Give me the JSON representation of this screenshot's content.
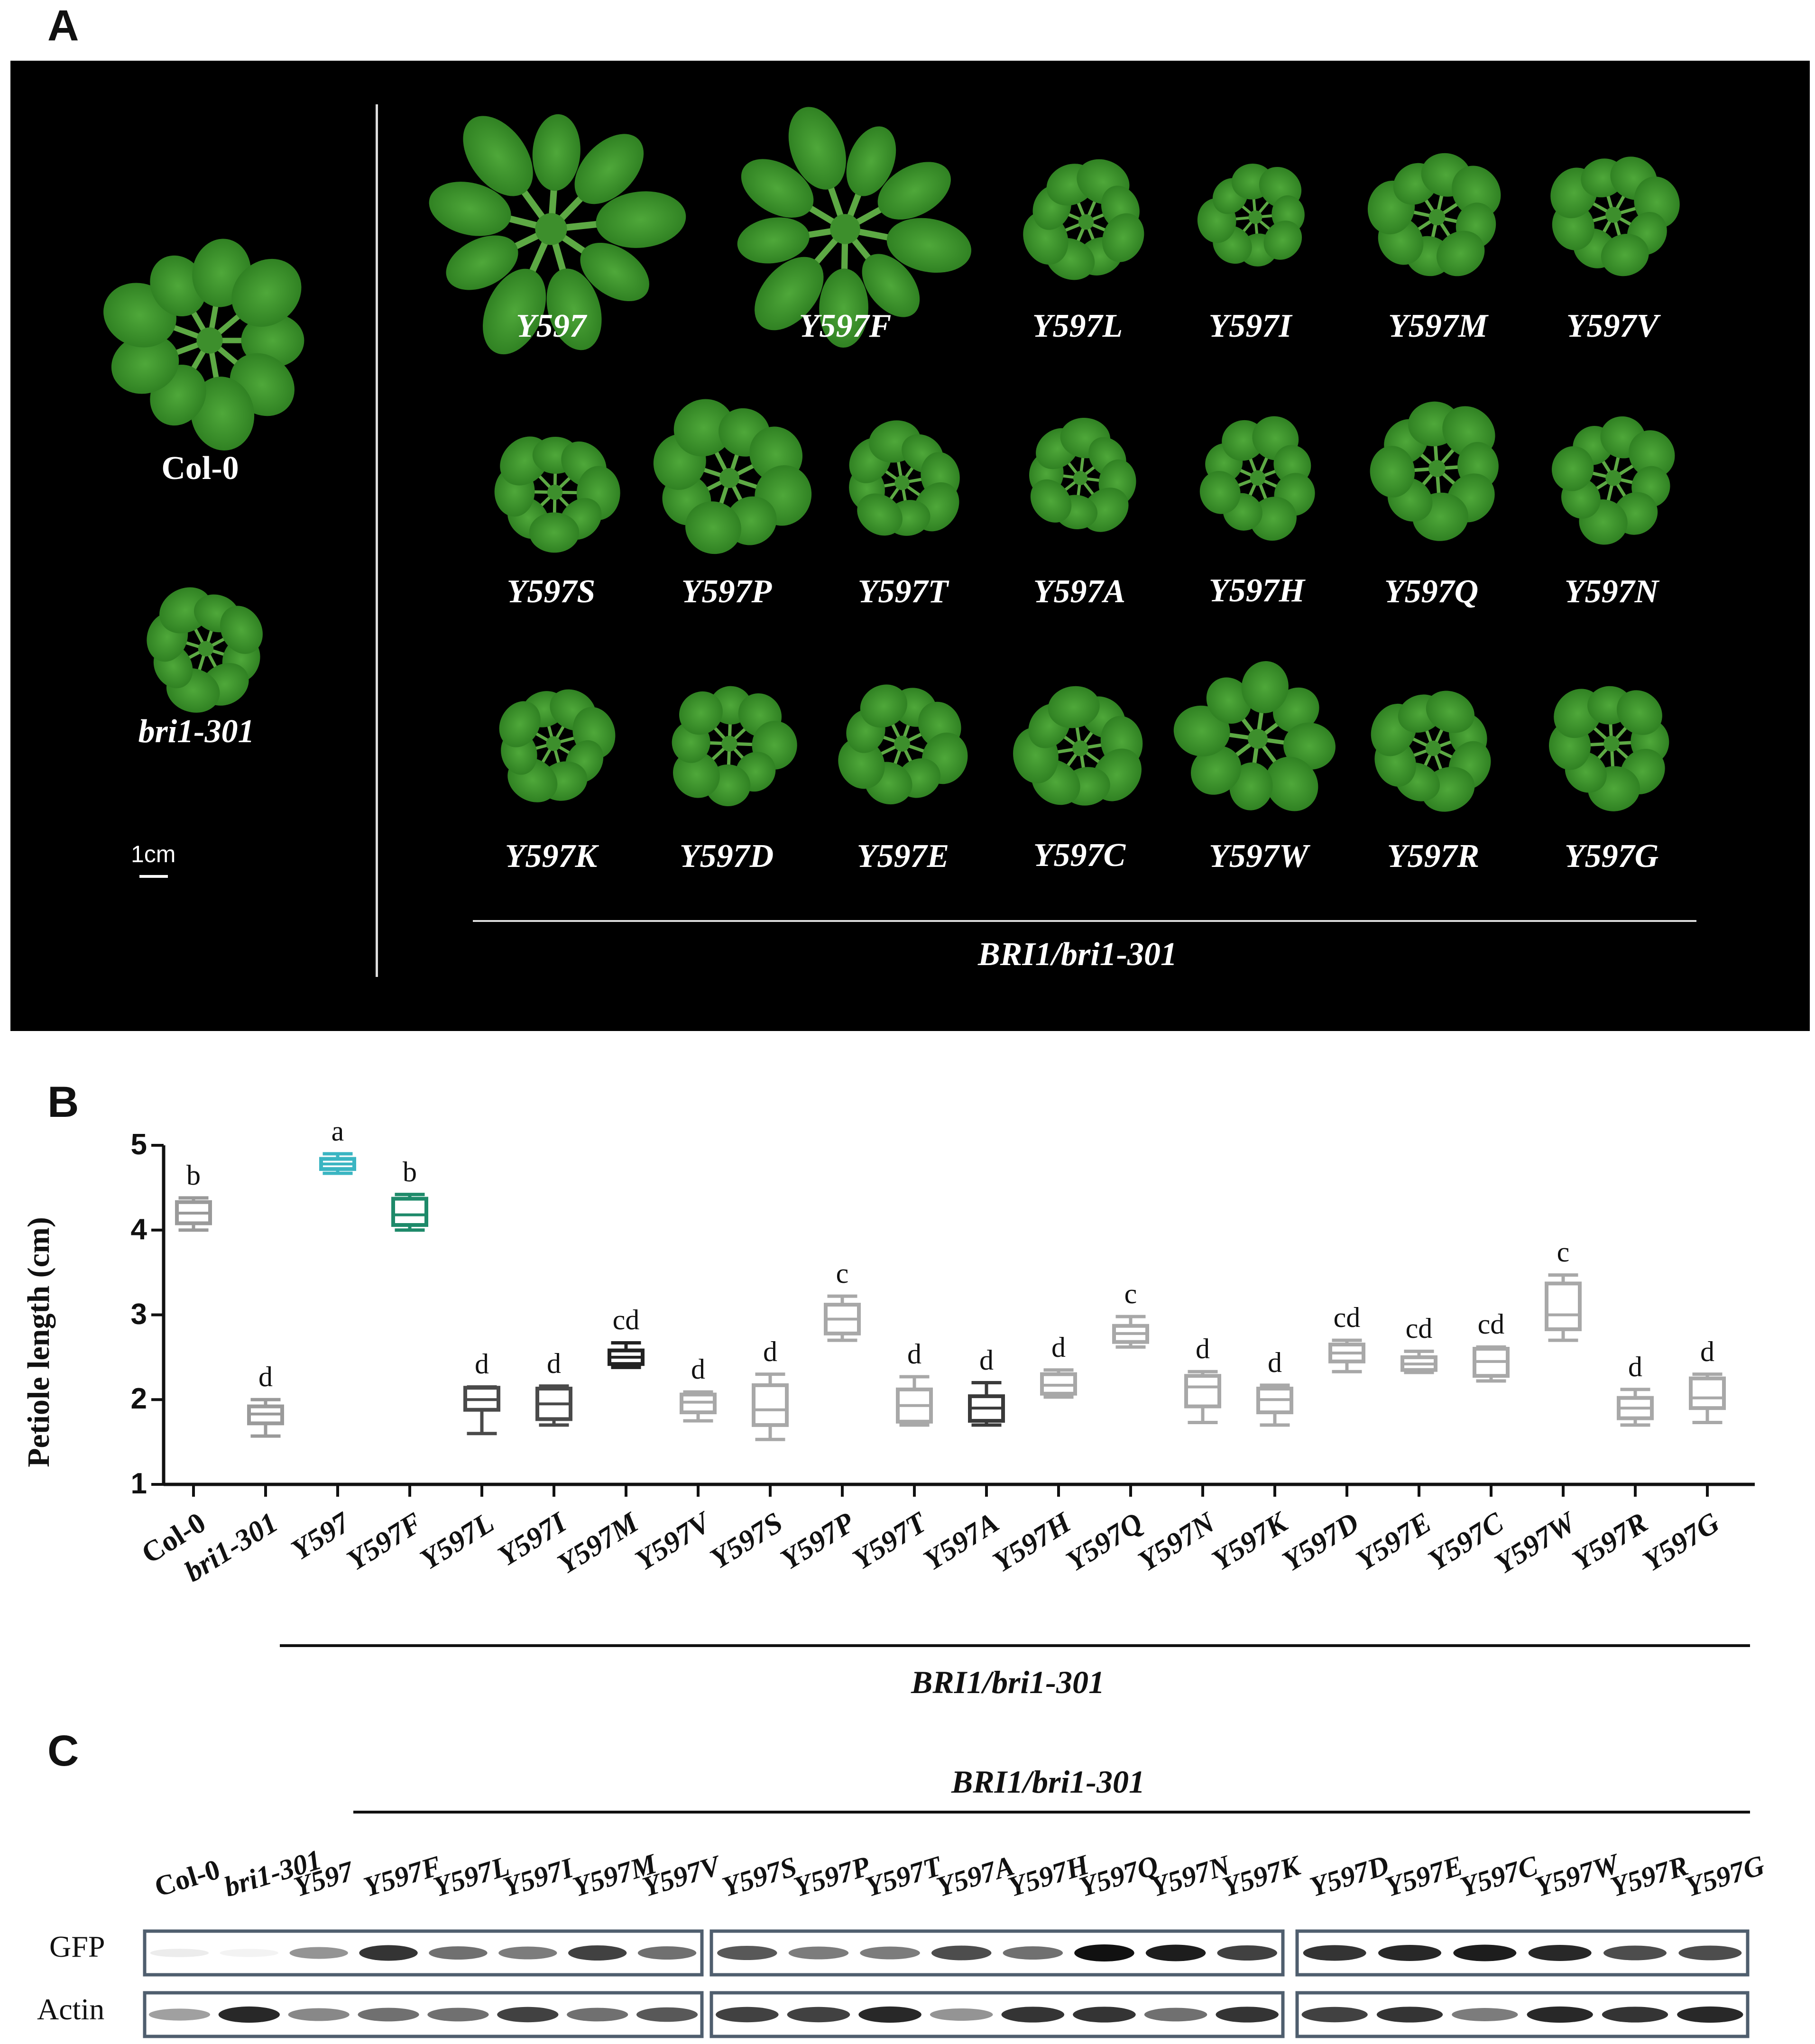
{
  "panels": {
    "a": "A",
    "b": "B",
    "c": "C"
  },
  "panelA": {
    "controls": [
      "Col-0",
      "bri1-301"
    ],
    "rows": [
      [
        "Y597",
        "Y597F",
        "Y597L",
        "Y597I",
        "Y597M",
        "Y597V"
      ],
      [
        "Y597S",
        "Y597P",
        "Y597T",
        "Y597A",
        "Y597H",
        "Y597Q",
        "Y597N"
      ],
      [
        "Y597K",
        "Y597D",
        "Y597E",
        "Y597C",
        "Y597W",
        "Y597R",
        "Y597G"
      ]
    ],
    "scale_bar": "1cm",
    "group_label": "BRI1/bri1-301"
  },
  "chart_data": {
    "type": "box",
    "ylabel": "Petiole length (cm)",
    "ylim": [
      1,
      5
    ],
    "yticks": [
      "1",
      "2",
      "3",
      "4",
      "5"
    ],
    "categories": [
      "Col-0",
      "bri1-301",
      "Y597",
      "Y597F",
      "Y597L",
      "Y597I",
      "Y597M",
      "Y597V",
      "Y597S",
      "Y597P",
      "Y597T",
      "Y597A",
      "Y597H",
      "Y597Q",
      "Y597N",
      "Y597K",
      "Y597D",
      "Y597E",
      "Y597C",
      "Y597W",
      "Y597R",
      "Y597G"
    ],
    "letters": [
      "b",
      "d",
      "a",
      "b",
      "d",
      "d",
      "cd",
      "d",
      "d",
      "c",
      "d",
      "d",
      "d",
      "c",
      "d",
      "d",
      "cd",
      "cd",
      "cd",
      "c",
      "d",
      "d"
    ],
    "boxes": [
      {
        "min": 4.0,
        "q1": 4.08,
        "median": 4.2,
        "q3": 4.33,
        "max": 4.38,
        "color": "#9a9a9a"
      },
      {
        "min": 1.57,
        "q1": 1.72,
        "median": 1.83,
        "q3": 1.92,
        "max": 2.0,
        "color": "#9a9a9a"
      },
      {
        "min": 4.67,
        "q1": 4.72,
        "median": 4.78,
        "q3": 4.84,
        "max": 4.9,
        "color": "#3ab5c2"
      },
      {
        "min": 4.0,
        "q1": 4.06,
        "median": 4.18,
        "q3": 4.37,
        "max": 4.42,
        "color": "#1e8a6a"
      },
      {
        "min": 1.6,
        "q1": 1.88,
        "median": 2.0,
        "q3": 2.14,
        "max": 2.15,
        "color": "#4a4a4a"
      },
      {
        "min": 1.7,
        "q1": 1.77,
        "median": 1.95,
        "q3": 2.13,
        "max": 2.16,
        "color": "#4a4a4a"
      },
      {
        "min": 2.38,
        "q1": 2.42,
        "median": 2.5,
        "q3": 2.58,
        "max": 2.67,
        "color": "#222222"
      },
      {
        "min": 1.75,
        "q1": 1.85,
        "median": 1.97,
        "q3": 2.06,
        "max": 2.09,
        "color": "#a8a8a8"
      },
      {
        "min": 1.53,
        "q1": 1.7,
        "median": 1.88,
        "q3": 2.17,
        "max": 2.3,
        "color": "#a8a8a8"
      },
      {
        "min": 2.7,
        "q1": 2.78,
        "median": 2.95,
        "q3": 3.12,
        "max": 3.22,
        "color": "#a8a8a8"
      },
      {
        "min": 1.7,
        "q1": 1.74,
        "median": 1.93,
        "q3": 2.12,
        "max": 2.27,
        "color": "#a8a8a8"
      },
      {
        "min": 1.7,
        "q1": 1.75,
        "median": 1.9,
        "q3": 2.04,
        "max": 2.2,
        "color": "#3a3a3a"
      },
      {
        "min": 2.03,
        "q1": 2.07,
        "median": 2.17,
        "q3": 2.3,
        "max": 2.35,
        "color": "#a8a8a8"
      },
      {
        "min": 2.62,
        "q1": 2.68,
        "median": 2.78,
        "q3": 2.87,
        "max": 2.98,
        "color": "#a8a8a8"
      },
      {
        "min": 1.73,
        "q1": 1.92,
        "median": 2.15,
        "q3": 2.28,
        "max": 2.33,
        "color": "#a8a8a8"
      },
      {
        "min": 1.7,
        "q1": 1.85,
        "median": 2.0,
        "q3": 2.13,
        "max": 2.17,
        "color": "#a8a8a8"
      },
      {
        "min": 2.33,
        "q1": 2.45,
        "median": 2.55,
        "q3": 2.65,
        "max": 2.7,
        "color": "#a8a8a8"
      },
      {
        "min": 2.32,
        "q1": 2.35,
        "median": 2.42,
        "q3": 2.5,
        "max": 2.57,
        "color": "#a8a8a8"
      },
      {
        "min": 2.22,
        "q1": 2.28,
        "median": 2.45,
        "q3": 2.6,
        "max": 2.62,
        "color": "#a8a8a8"
      },
      {
        "min": 2.7,
        "q1": 2.83,
        "median": 3.0,
        "q3": 3.37,
        "max": 3.47,
        "color": "#a8a8a8"
      },
      {
        "min": 1.7,
        "q1": 1.78,
        "median": 1.9,
        "q3": 2.02,
        "max": 2.12,
        "color": "#a8a8a8"
      },
      {
        "min": 1.73,
        "q1": 1.9,
        "median": 2.02,
        "q3": 2.25,
        "max": 2.3,
        "color": "#a8a8a8"
      }
    ],
    "group_label": "BRI1/bri1-301"
  },
  "panelC": {
    "group_label": "BRI1/bri1-301",
    "lanes": [
      "Col-0",
      "bri1-301",
      "Y597",
      "Y597F",
      "Y597L",
      "Y597I",
      "Y597M",
      "Y597V",
      "Y597S",
      "Y597P",
      "Y597T",
      "Y597A",
      "Y597H",
      "Y597Q",
      "Y597N",
      "Y597K",
      "Y597D",
      "Y597E",
      "Y597C",
      "Y597W",
      "Y597R",
      "Y597G"
    ],
    "rows": [
      "GFP",
      "Actin"
    ],
    "gfp_intensity": [
      0.08,
      0.05,
      0.45,
      0.85,
      0.6,
      0.55,
      0.8,
      0.6,
      0.7,
      0.55,
      0.55,
      0.75,
      0.6,
      1.0,
      0.95,
      0.8,
      0.85,
      0.9,
      0.95,
      0.9,
      0.75,
      0.75
    ],
    "actin_intensity": [
      0.4,
      0.9,
      0.5,
      0.6,
      0.6,
      0.8,
      0.6,
      0.7,
      0.8,
      0.8,
      0.9,
      0.45,
      0.85,
      0.85,
      0.6,
      0.85,
      0.8,
      0.85,
      0.55,
      0.9,
      0.85,
      0.9
    ]
  }
}
